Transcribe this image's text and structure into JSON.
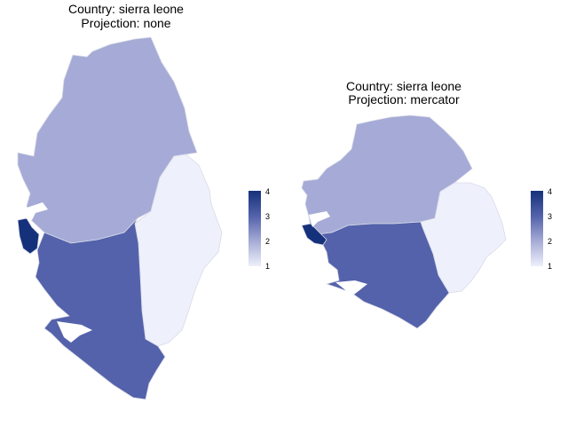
{
  "chart_data": [
    {
      "type": "choropleth",
      "title": [
        "Country: sierra leone",
        "Projection: none"
      ],
      "legend": {
        "min": 1,
        "max": 4,
        "ticks": [
          "1",
          "2",
          "3",
          "4"
        ],
        "placement": "right"
      },
      "color_scale": {
        "low": "#eef0fb",
        "high": "#16317b"
      },
      "regions": [
        {
          "id": "northern",
          "value": 2
        },
        {
          "id": "eastern",
          "value": 1
        },
        {
          "id": "southern",
          "value": 3
        },
        {
          "id": "western",
          "value": 4
        }
      ]
    },
    {
      "type": "choropleth",
      "title": [
        "Country: sierra leone",
        "Projection: mercator"
      ],
      "legend": {
        "min": 1,
        "max": 4,
        "ticks": [
          "1",
          "2",
          "3",
          "4"
        ],
        "placement": "right"
      },
      "color_scale": {
        "low": "#eef0fb",
        "high": "#16317b"
      },
      "regions": [
        {
          "id": "northern",
          "value": 2
        },
        {
          "id": "eastern",
          "value": 1
        },
        {
          "id": "southern",
          "value": 3
        },
        {
          "id": "western",
          "value": 4
        }
      ]
    }
  ]
}
